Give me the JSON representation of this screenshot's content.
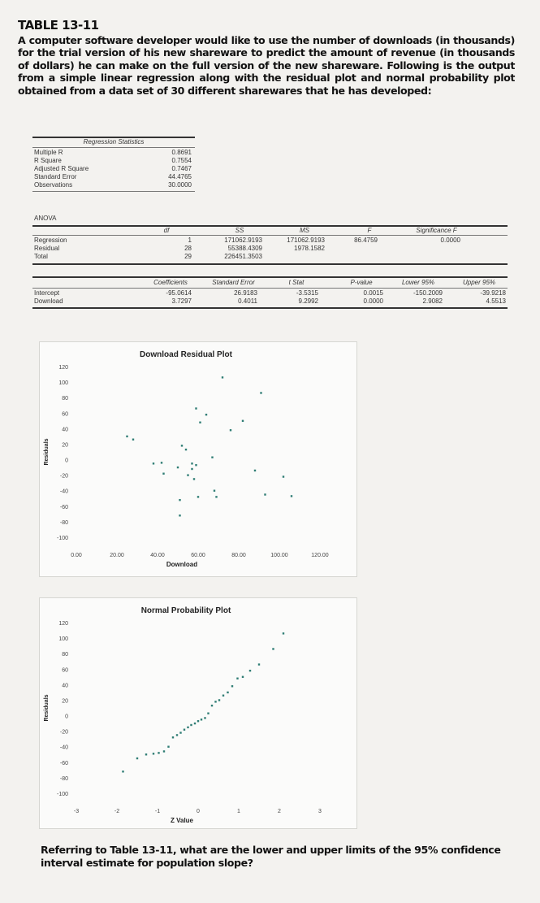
{
  "title": "TABLE 13-11",
  "intro": "A computer software developer would like to use the number of downloads (in thousands) for the trial version of his new shareware to predict the amount of revenue (in thousands of dollars) he can make on the full version of the new shareware. Following is the output from a simple linear regression along with the residual plot and normal probability plot obtained from a data set of 30 different sharewares that he has developed:",
  "regression_statistics": {
    "header": "Regression Statistics",
    "rows": [
      {
        "label": "Multiple R",
        "value": "0.8691"
      },
      {
        "label": "R Square",
        "value": "0.7554"
      },
      {
        "label": "Adjusted R Square",
        "value": "0.7467"
      },
      {
        "label": "Standard Error",
        "value": "44.4765"
      },
      {
        "label": "Observations",
        "value": "30.0000"
      }
    ]
  },
  "anova": {
    "label": "ANOVA",
    "headers": {
      "df": "df",
      "ss": "SS",
      "ms": "MS",
      "f": "F",
      "sigf": "Significance F"
    },
    "rows": [
      {
        "label": "Regression",
        "df": "1",
        "ss": "171062.9193",
        "ms": "171062.9193",
        "f": "86.4759",
        "sigf": "0.0000"
      },
      {
        "label": "Residual",
        "df": "28",
        "ss": "55388.4309",
        "ms": "1978.1582",
        "f": "",
        "sigf": ""
      },
      {
        "label": "Total",
        "df": "29",
        "ss": "226451.3503",
        "ms": "",
        "f": "",
        "sigf": ""
      }
    ]
  },
  "coefficients": {
    "headers": {
      "coef": "Coefficients",
      "se": "Standard Error",
      "t": "t Stat",
      "p": "P-value",
      "lower": "Lower 95%",
      "upper": "Upper 95%"
    },
    "rows": [
      {
        "label": "Intercept",
        "coef": "-95.0614",
        "se": "26.9183",
        "t": "-3.5315",
        "p": "0.0015",
        "lower": "-150.2009",
        "upper": "-39.9218"
      },
      {
        "label": "Download",
        "coef": "3.7297",
        "se": "0.4011",
        "t": "9.2992",
        "p": "0.0000",
        "lower": "2.9082",
        "upper": "4.5513"
      }
    ]
  },
  "chart_data": [
    {
      "type": "scatter",
      "title": "Download Residual Plot",
      "xlabel": "Download",
      "ylabel": "Residuals",
      "xlim": [
        0,
        120
      ],
      "ylim": [
        -100,
        120
      ],
      "xticks": [
        "0.00",
        "20.00",
        "40.00",
        "60.00",
        "80.00",
        "100.00",
        "120.00"
      ],
      "yticks": [
        "120",
        "100",
        "80",
        "60",
        "40",
        "20",
        "0",
        "-20",
        "-40",
        "-60",
        "-80",
        "-100"
      ],
      "grid": false,
      "color": "#2f7d74",
      "points": [
        [
          25,
          30
        ],
        [
          28,
          26
        ],
        [
          38,
          -5
        ],
        [
          42,
          -4
        ],
        [
          43,
          -18
        ],
        [
          50,
          -10
        ],
        [
          51,
          -52
        ],
        [
          51,
          -72
        ],
        [
          52,
          18
        ],
        [
          54,
          13
        ],
        [
          55,
          -20
        ],
        [
          57,
          -12
        ],
        [
          58,
          -25
        ],
        [
          59,
          -7
        ],
        [
          59,
          66
        ],
        [
          60,
          -48
        ],
        [
          61,
          48
        ],
        [
          64,
          58
        ],
        [
          67,
          3
        ],
        [
          68,
          -40
        ],
        [
          69,
          -48
        ],
        [
          72,
          106
        ],
        [
          76,
          38
        ],
        [
          82,
          50
        ],
        [
          88,
          -14
        ],
        [
          91,
          86
        ],
        [
          93,
          -45
        ],
        [
          102,
          -22
        ],
        [
          106,
          -47
        ],
        [
          57,
          -5
        ]
      ]
    },
    {
      "type": "scatter",
      "title": "Normal Probability Plot",
      "xlabel": "Z Value",
      "ylabel": "Residuals",
      "xlim": [
        -3,
        3
      ],
      "ylim": [
        -100,
        120
      ],
      "xticks": [
        "-3",
        "-2",
        "-1",
        "0",
        "1",
        "2",
        "3"
      ],
      "yticks": [
        "120",
        "100",
        "80",
        "60",
        "40",
        "20",
        "0",
        "-20",
        "-40",
        "-60",
        "-80",
        "-100"
      ],
      "grid": false,
      "color": "#2f7d74",
      "points": [
        [
          -1.85,
          -72
        ],
        [
          -1.5,
          -55
        ],
        [
          -1.28,
          -50
        ],
        [
          -1.1,
          -49
        ],
        [
          -0.97,
          -48
        ],
        [
          -0.84,
          -46
        ],
        [
          -0.73,
          -40
        ],
        [
          -0.62,
          -28
        ],
        [
          -0.52,
          -25
        ],
        [
          -0.43,
          -22
        ],
        [
          -0.34,
          -18
        ],
        [
          -0.25,
          -15
        ],
        [
          -0.17,
          -12
        ],
        [
          -0.08,
          -10
        ],
        [
          0.0,
          -7
        ],
        [
          0.08,
          -5
        ],
        [
          0.17,
          -3
        ],
        [
          0.25,
          3
        ],
        [
          0.34,
          13
        ],
        [
          0.43,
          18
        ],
        [
          0.52,
          20
        ],
        [
          0.62,
          26
        ],
        [
          0.73,
          30
        ],
        [
          0.84,
          38
        ],
        [
          0.97,
          48
        ],
        [
          1.1,
          50
        ],
        [
          1.28,
          58
        ],
        [
          1.5,
          66
        ],
        [
          1.85,
          86
        ],
        [
          2.1,
          106
        ]
      ]
    }
  ],
  "question": "Referring to Table 13-11, what are the lower and upper limits of the 95% confidence interval estimate for population slope?"
}
